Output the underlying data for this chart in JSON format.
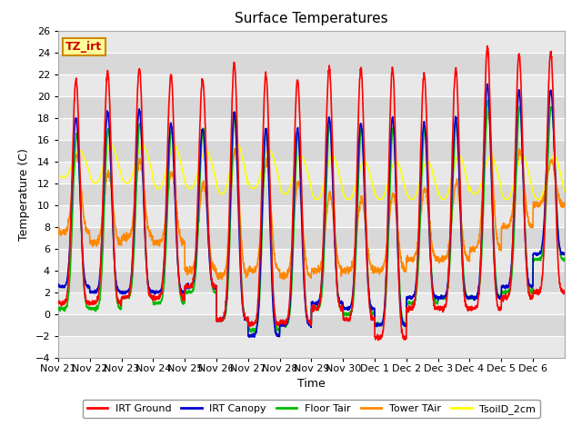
{
  "title": "Surface Temperatures",
  "ylabel": "Temperature (C)",
  "xlabel": "Time",
  "ylim": [
    -4,
    26
  ],
  "yticks": [
    -4,
    -2,
    0,
    2,
    4,
    6,
    8,
    10,
    12,
    14,
    16,
    18,
    20,
    22,
    24,
    26
  ],
  "x_labels": [
    "Nov 21",
    "Nov 22",
    "Nov 23",
    "Nov 24",
    "Nov 25",
    "Nov 26",
    "Nov 27",
    "Nov 28",
    "Nov 29",
    "Nov 30",
    "Dec 1",
    "Dec 2",
    "Dec 3",
    "Dec 4",
    "Dec 5",
    "Dec 6"
  ],
  "line_colors": {
    "IRT Ground": "#ff0000",
    "IRT Canopy": "#0000cc",
    "Floor Tair": "#00bb00",
    "Tower TAir": "#ff8800",
    "TsoilD_2cm": "#ffff00"
  },
  "tz_label": "TZ_irt",
  "tz_bg": "#ffff99",
  "tz_border": "#cc8800",
  "plot_bg_light": "#e8e8e8",
  "plot_bg_dark": "#d8d8d8",
  "n_days": 16,
  "pts_per_day": 144
}
